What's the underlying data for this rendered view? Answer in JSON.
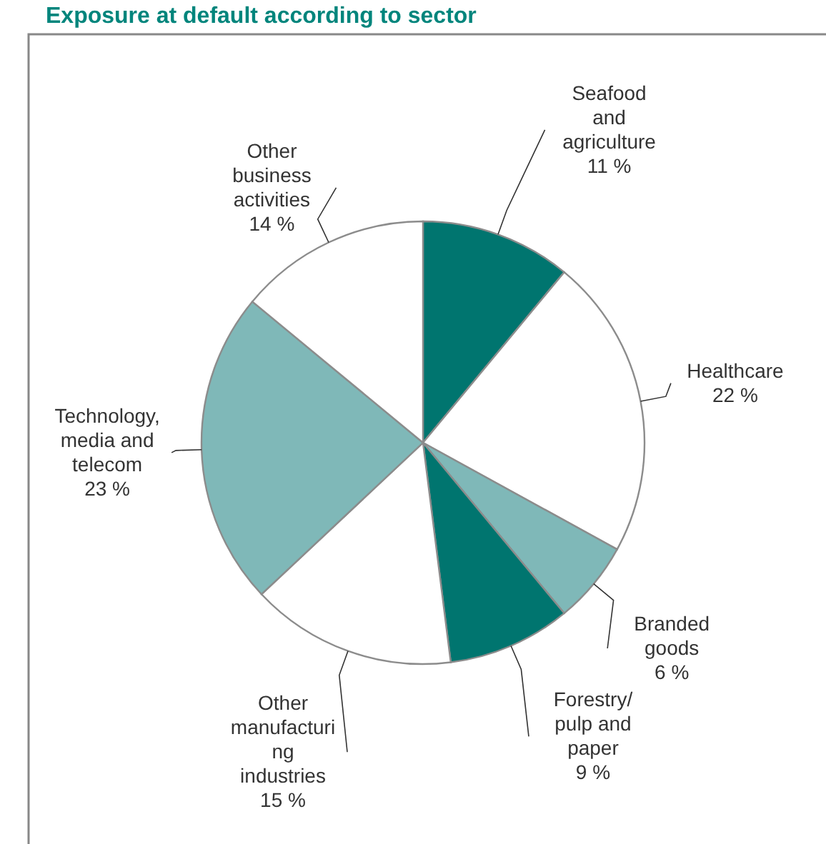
{
  "chart_data": {
    "type": "pie",
    "title": "Exposure at default according to sector",
    "categories": [
      "Seafood\nand\nagriculture",
      "Healthcare",
      "Branded\ngoods",
      "Forestry/\npulp and\npaper",
      "Other\nmanufacturi\nng\nindustries",
      "Technology,\nmedia and\ntelecom",
      "Other\nbusiness\nactivities"
    ],
    "values": [
      11,
      22,
      6,
      9,
      15,
      23,
      14
    ],
    "value_labels": [
      "11 %",
      "22 %",
      "6 %",
      "9 %",
      "15 %",
      "23 %",
      "14 %"
    ],
    "colors": [
      "#00756f",
      "#ffffff",
      "#7fb8b8",
      "#00756f",
      "#ffffff",
      "#7fb8b8",
      "#ffffff"
    ]
  }
}
